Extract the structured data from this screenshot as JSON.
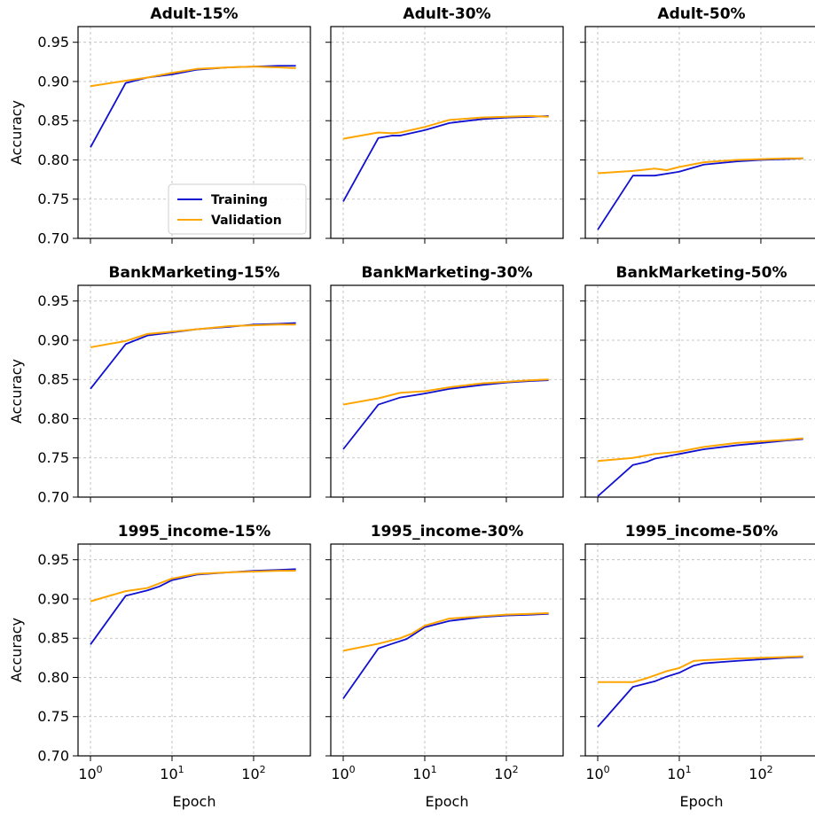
{
  "chart_data": {
    "type": "line",
    "layout": "3x3 grid of subplots, shared y axis per row",
    "x_scale": "log",
    "y_scale": "linear",
    "xlabel": "Epoch",
    "ylabel": "Accuracy",
    "xlim": [
      1,
      350
    ],
    "ylim": [
      0.7,
      0.97
    ],
    "x_ticks": [
      1,
      10,
      100
    ],
    "x_tick_labels": [
      {
        "base": "10",
        "exp": "0"
      },
      {
        "base": "10",
        "exp": "1"
      },
      {
        "base": "10",
        "exp": "2"
      }
    ],
    "y_ticks": [
      0.7,
      0.75,
      0.8,
      0.85,
      0.9,
      0.95
    ],
    "y_tick_labels": [
      "0.70",
      "0.75",
      "0.80",
      "0.85",
      "0.90",
      "0.95"
    ],
    "grid": true,
    "legend": {
      "placement": "lower right",
      "subplot": 0,
      "entries": [
        "Training",
        "Validation"
      ]
    },
    "series_colors": {
      "Training": "#1010d0",
      "Validation": "#ffa500"
    },
    "subplots": [
      {
        "title": "Adult-15%",
        "series": [
          {
            "name": "Training",
            "x": [
              1,
              2.7,
              5,
              10,
              20,
              50,
              100,
              200,
              330
            ],
            "y": [
              0.816,
              0.898,
              0.905,
              0.909,
              0.915,
              0.918,
              0.919,
              0.92,
              0.92
            ]
          },
          {
            "name": "Validation",
            "x": [
              1,
              2.7,
              5,
              10,
              20,
              50,
              100,
              200,
              330
            ],
            "y": [
              0.894,
              0.901,
              0.905,
              0.911,
              0.916,
              0.918,
              0.919,
              0.918,
              0.917
            ]
          }
        ]
      },
      {
        "title": "Adult-30%",
        "series": [
          {
            "name": "Training",
            "x": [
              1,
              2.7,
              4,
              5,
              10,
              20,
              50,
              100,
              200,
              330
            ],
            "y": [
              0.747,
              0.828,
              0.831,
              0.831,
              0.838,
              0.847,
              0.852,
              0.854,
              0.855,
              0.856
            ]
          },
          {
            "name": "Validation",
            "x": [
              1,
              2.7,
              4,
              5,
              10,
              20,
              50,
              100,
              200,
              330
            ],
            "y": [
              0.827,
              0.835,
              0.834,
              0.835,
              0.842,
              0.851,
              0.854,
              0.855,
              0.856,
              0.855
            ]
          }
        ]
      },
      {
        "title": "Adult-50%",
        "series": [
          {
            "name": "Training",
            "x": [
              1,
              2.7,
              5,
              10,
              20,
              50,
              100,
              200,
              330
            ],
            "y": [
              0.711,
              0.78,
              0.78,
              0.785,
              0.794,
              0.798,
              0.8,
              0.801,
              0.802
            ]
          },
          {
            "name": "Validation",
            "x": [
              1,
              2.7,
              5,
              7,
              10,
              20,
              50,
              100,
              200,
              330
            ],
            "y": [
              0.783,
              0.786,
              0.789,
              0.787,
              0.791,
              0.797,
              0.8,
              0.801,
              0.802,
              0.802
            ]
          }
        ]
      },
      {
        "title": "BankMarketing-15%",
        "series": [
          {
            "name": "Training",
            "x": [
              1,
              2.7,
              5,
              10,
              20,
              50,
              100,
              200,
              330
            ],
            "y": [
              0.838,
              0.895,
              0.906,
              0.91,
              0.914,
              0.917,
              0.92,
              0.921,
              0.922
            ]
          },
          {
            "name": "Validation",
            "x": [
              1,
              2.7,
              5,
              10,
              20,
              50,
              100,
              200,
              330
            ],
            "y": [
              0.891,
              0.899,
              0.908,
              0.911,
              0.914,
              0.918,
              0.919,
              0.92,
              0.92
            ]
          }
        ]
      },
      {
        "title": "BankMarketing-30%",
        "series": [
          {
            "name": "Training",
            "x": [
              1,
              2.7,
              5,
              10,
              20,
              50,
              100,
              200,
              330
            ],
            "y": [
              0.761,
              0.818,
              0.827,
              0.832,
              0.838,
              0.843,
              0.846,
              0.848,
              0.849
            ]
          },
          {
            "name": "Validation",
            "x": [
              1,
              2.7,
              5,
              10,
              20,
              50,
              100,
              200,
              330
            ],
            "y": [
              0.818,
              0.826,
              0.833,
              0.835,
              0.84,
              0.845,
              0.847,
              0.849,
              0.85
            ]
          }
        ]
      },
      {
        "title": "BankMarketing-50%",
        "series": [
          {
            "name": "Training",
            "x": [
              1,
              2.7,
              4,
              5,
              10,
              20,
              50,
              100,
              200,
              330
            ],
            "y": [
              0.701,
              0.741,
              0.745,
              0.749,
              0.755,
              0.761,
              0.766,
              0.769,
              0.772,
              0.774
            ]
          },
          {
            "name": "Validation",
            "x": [
              1,
              2.7,
              5,
              10,
              20,
              50,
              100,
              200,
              330
            ],
            "y": [
              0.746,
              0.75,
              0.755,
              0.758,
              0.764,
              0.769,
              0.771,
              0.773,
              0.775
            ]
          }
        ]
      },
      {
        "title": "1995_income-15%",
        "series": [
          {
            "name": "Training",
            "x": [
              1,
              2.7,
              5,
              7,
              10,
              20,
              50,
              100,
              200,
              330
            ],
            "y": [
              0.842,
              0.904,
              0.911,
              0.916,
              0.924,
              0.931,
              0.934,
              0.936,
              0.937,
              0.938
            ]
          },
          {
            "name": "Validation",
            "x": [
              1,
              2.7,
              5,
              10,
              20,
              50,
              100,
              200,
              330
            ],
            "y": [
              0.897,
              0.91,
              0.914,
              0.926,
              0.932,
              0.934,
              0.935,
              0.936,
              0.936
            ]
          }
        ]
      },
      {
        "title": "1995_income-30%",
        "series": [
          {
            "name": "Training",
            "x": [
              1,
              2.7,
              4,
              6,
              10,
              20,
              50,
              100,
              200,
              330
            ],
            "y": [
              0.773,
              0.837,
              0.843,
              0.849,
              0.864,
              0.872,
              0.877,
              0.879,
              0.88,
              0.881
            ]
          },
          {
            "name": "Validation",
            "x": [
              1,
              2.7,
              5,
              7,
              10,
              20,
              50,
              100,
              200,
              330
            ],
            "y": [
              0.834,
              0.843,
              0.85,
              0.856,
              0.866,
              0.875,
              0.878,
              0.88,
              0.881,
              0.882
            ]
          }
        ]
      },
      {
        "title": "1995_income-50%",
        "series": [
          {
            "name": "Training",
            "x": [
              1,
              2.7,
              5,
              7,
              10,
              15,
              20,
              50,
              100,
              200,
              330
            ],
            "y": [
              0.737,
              0.788,
              0.795,
              0.801,
              0.806,
              0.815,
              0.818,
              0.821,
              0.823,
              0.825,
              0.826
            ]
          },
          {
            "name": "Validation",
            "x": [
              1,
              2.7,
              4,
              7,
              10,
              15,
              20,
              50,
              100,
              200,
              330
            ],
            "y": [
              0.794,
              0.794,
              0.799,
              0.808,
              0.812,
              0.821,
              0.822,
              0.824,
              0.825,
              0.826,
              0.827
            ]
          }
        ]
      }
    ]
  }
}
